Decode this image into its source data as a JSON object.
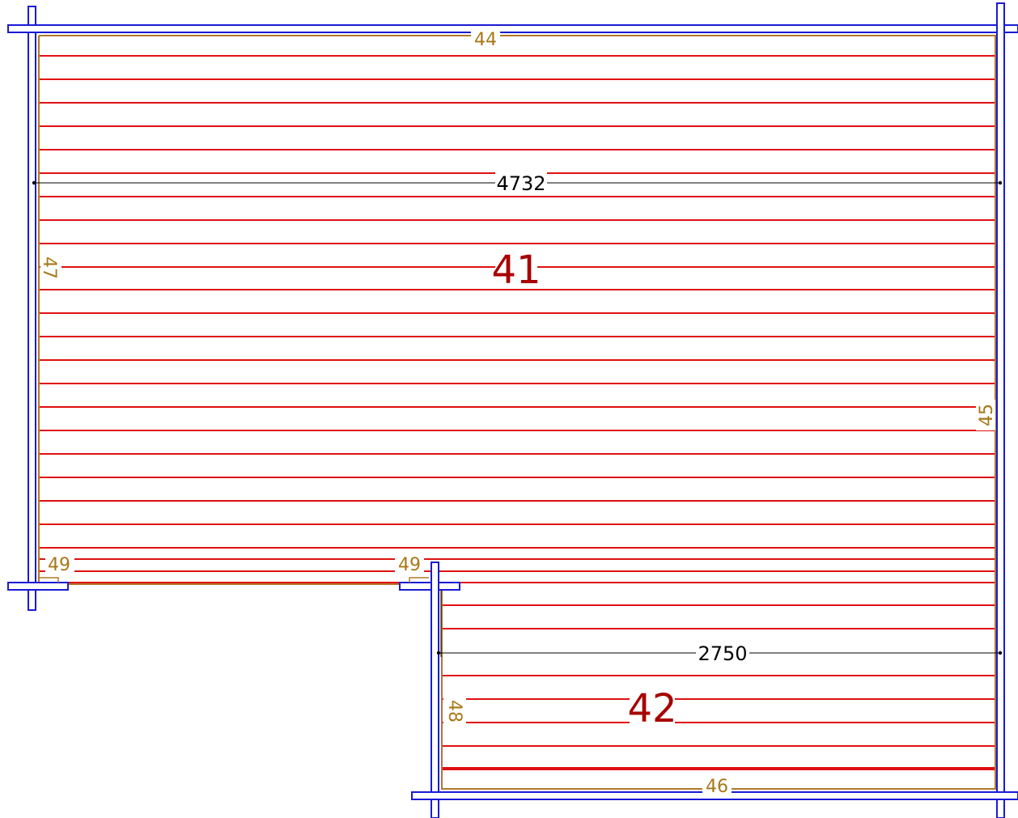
{
  "colors": {
    "wall": "#1a1ad6",
    "board": "#e01010",
    "frame": "#b07828",
    "dimension": "#000000",
    "room_label": "#a80000",
    "part_label": "#a87818"
  },
  "rooms": [
    {
      "label": "41",
      "dimension": "4732"
    },
    {
      "label": "42",
      "dimension": "2750"
    }
  ],
  "parts": {
    "top": "44",
    "right": "45",
    "bottom_lower": "46",
    "left_upper": "47",
    "left_lower": "48",
    "corner_left": "49",
    "corner_inner": "49"
  }
}
